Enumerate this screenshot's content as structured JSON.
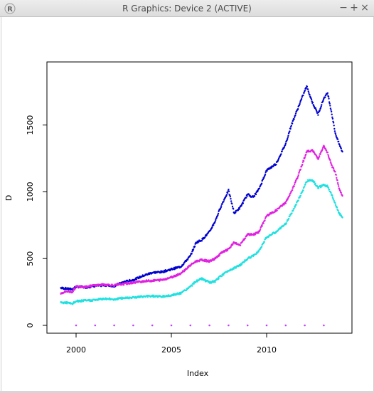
{
  "window": {
    "title": "R Graphics: Device 2 (ACTIVE)",
    "buttons": {
      "minimize": "−",
      "maximize": "+",
      "close": "×"
    },
    "app_icon": "r-logo-icon"
  },
  "chart_data": {
    "type": "scatter",
    "xlabel": "Index",
    "ylabel": "D",
    "xlim": [
      1999,
      2014
    ],
    "ylim": [
      0,
      1900
    ],
    "x_ticks": [
      {
        "value": 2000,
        "label": "2000"
      },
      {
        "value": 2005,
        "label": "2005"
      },
      {
        "value": 2010,
        "label": "2010"
      }
    ],
    "y_ticks": [
      {
        "value": 0,
        "label": "0"
      },
      {
        "value": 500,
        "label": "500"
      },
      {
        "value": 1000,
        "label": "1000"
      },
      {
        "value": 1500,
        "label": "1500"
      }
    ],
    "grid": false,
    "series": [
      {
        "color": "#0000d0",
        "x": [
          1999.2,
          1999.5,
          1999.8,
          2000.0,
          2000.5,
          2001.0,
          2001.5,
          2002.0,
          2002.5,
          2003.0,
          2003.5,
          2004.0,
          2004.5,
          2005.0,
          2005.5,
          2006.0,
          2006.3,
          2006.6,
          2007.0,
          2007.3,
          2007.6,
          2008.0,
          2008.3,
          2008.6,
          2009.0,
          2009.3,
          2009.6,
          2010.0,
          2010.5,
          2011.0,
          2011.3,
          2011.6,
          2011.9,
          2012.1,
          2012.4,
          2012.7,
          2013.0,
          2013.2,
          2013.4,
          2013.6,
          2013.8,
          2014.0
        ],
        "y": [
          280,
          275,
          270,
          290,
          285,
          295,
          300,
          295,
          325,
          340,
          370,
          395,
          400,
          420,
          440,
          520,
          620,
          640,
          700,
          780,
          890,
          1010,
          840,
          880,
          980,
          960,
          1020,
          1160,
          1210,
          1360,
          1500,
          1610,
          1720,
          1790,
          1670,
          1580,
          1700,
          1740,
          1600,
          1440,
          1360,
          1290
        ]
      },
      {
        "color": "#e020e0",
        "x": [
          1999.2,
          1999.5,
          1999.8,
          2000.0,
          2000.5,
          2001.0,
          2001.5,
          2002.0,
          2002.5,
          2003.0,
          2003.5,
          2004.0,
          2004.5,
          2005.0,
          2005.5,
          2006.0,
          2006.3,
          2006.6,
          2007.0,
          2007.3,
          2007.6,
          2008.0,
          2008.3,
          2008.6,
          2009.0,
          2009.3,
          2009.6,
          2010.0,
          2010.5,
          2011.0,
          2011.3,
          2011.6,
          2011.9,
          2012.1,
          2012.4,
          2012.7,
          2013.0,
          2013.2,
          2013.4,
          2013.6,
          2013.8,
          2014.0
        ],
        "y": [
          240,
          255,
          250,
          290,
          290,
          300,
          305,
          300,
          310,
          320,
          330,
          335,
          340,
          360,
          390,
          450,
          480,
          490,
          480,
          500,
          540,
          570,
          620,
          600,
          680,
          680,
          700,
          820,
          860,
          920,
          1000,
          1100,
          1220,
          1300,
          1310,
          1250,
          1340,
          1290,
          1200,
          1150,
          1030,
          960
        ]
      },
      {
        "color": "#20e0e0",
        "x": [
          1999.2,
          1999.5,
          1999.8,
          2000.0,
          2000.5,
          2001.0,
          2001.5,
          2002.0,
          2002.5,
          2003.0,
          2003.5,
          2004.0,
          2004.5,
          2005.0,
          2005.5,
          2006.0,
          2006.3,
          2006.6,
          2007.0,
          2007.3,
          2007.6,
          2008.0,
          2008.3,
          2008.6,
          2009.0,
          2009.3,
          2009.6,
          2010.0,
          2010.5,
          2011.0,
          2011.3,
          2011.6,
          2011.9,
          2012.1,
          2012.4,
          2012.7,
          2013.0,
          2013.2,
          2013.4,
          2013.6,
          2013.8,
          2014.0
        ],
        "y": [
          170,
          170,
          160,
          180,
          185,
          190,
          200,
          195,
          205,
          210,
          215,
          220,
          215,
          225,
          240,
          290,
          330,
          350,
          320,
          330,
          370,
          410,
          430,
          450,
          500,
          520,
          560,
          660,
          700,
          760,
          840,
          920,
          1010,
          1080,
          1090,
          1030,
          1050,
          1040,
          980,
          910,
          840,
          810
        ]
      },
      {
        "color": "#c040ff",
        "x": [
          2000,
          2001,
          2002,
          2003,
          2004,
          2005,
          2006,
          2007,
          2008,
          2009,
          2010,
          2011,
          2012,
          2013
        ],
        "y": [
          0,
          0,
          0,
          0,
          0,
          0,
          0,
          0,
          0,
          0,
          0,
          0,
          0,
          0
        ]
      }
    ]
  }
}
